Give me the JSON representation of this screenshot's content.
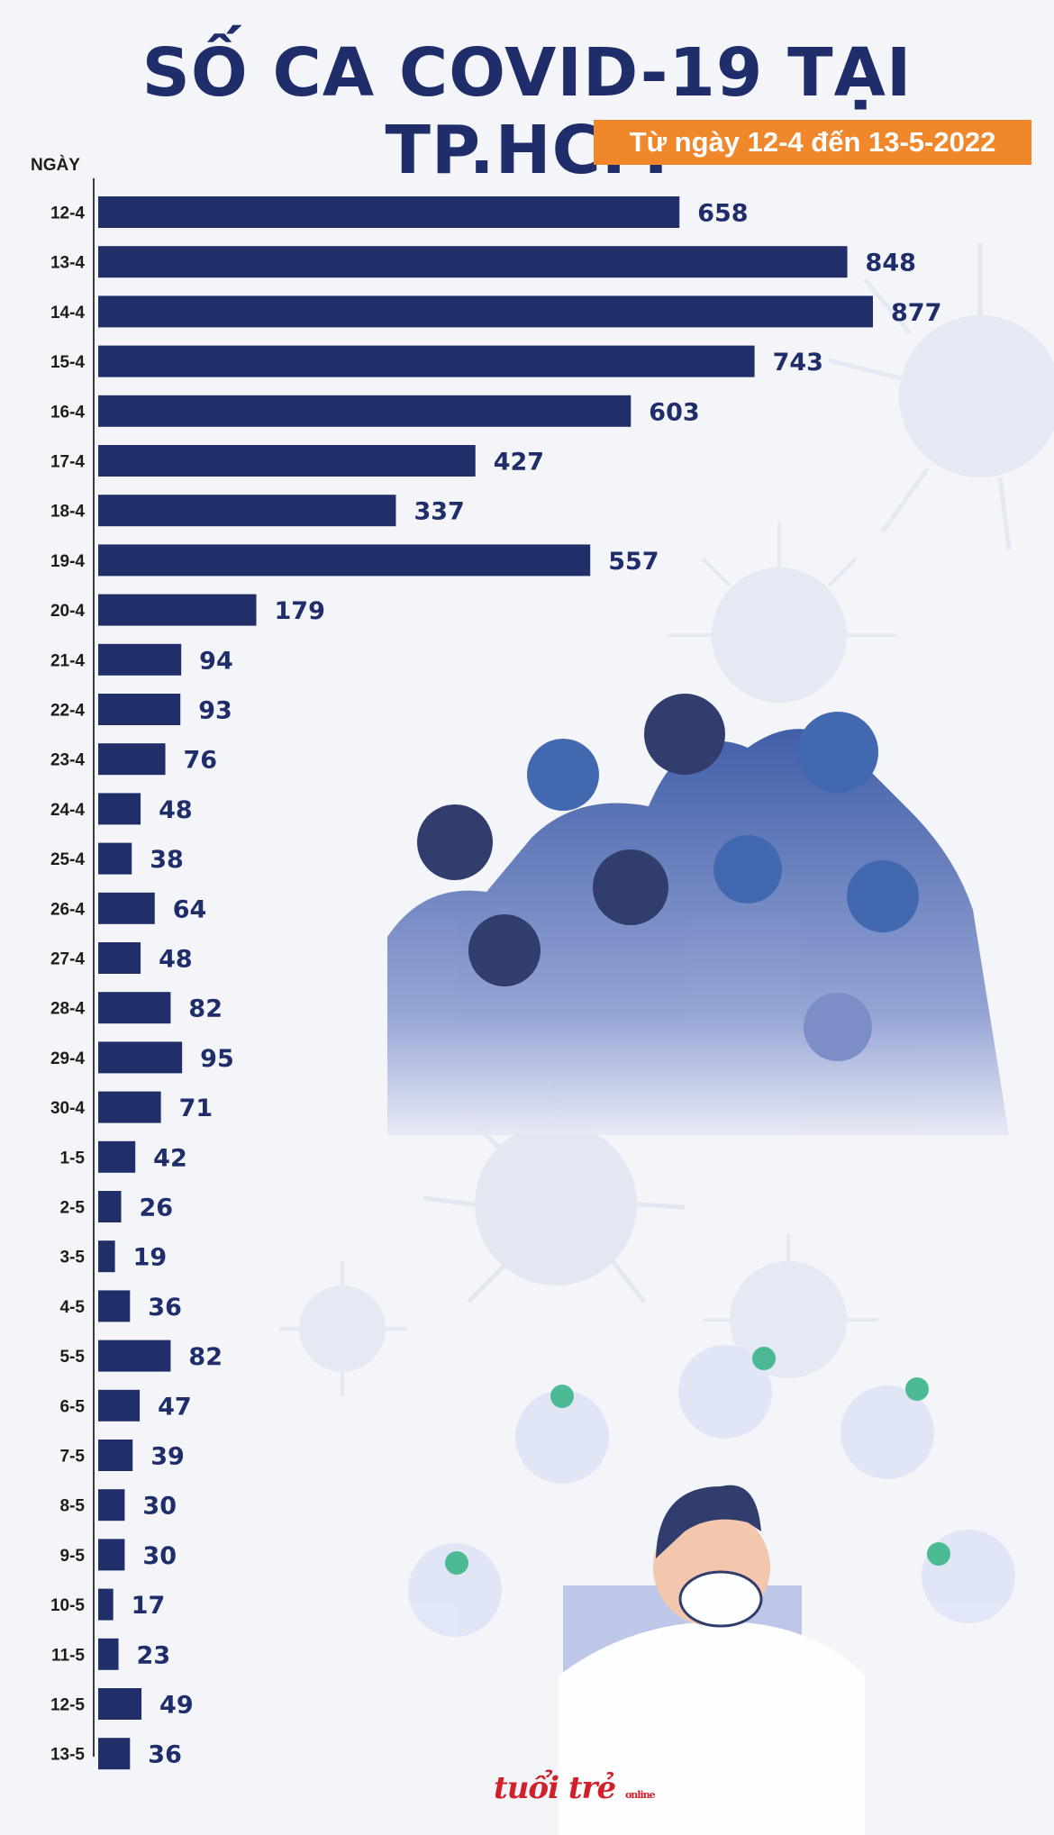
{
  "title": "SỐ CA COVID-19 TẠI TP.HCM",
  "subtitle": "Từ ngày 12-4 đến 13-5-2022",
  "logo": "tuổi trẻ",
  "logo_sub": "online",
  "colors": {
    "bar": "#202e69",
    "title": "#1f2d6b",
    "accent": "#f0872b",
    "label": "#1f2d6b"
  },
  "chart_data": {
    "type": "bar",
    "orientation": "horizontal",
    "ylabel": "NGÀY",
    "categories": [
      "12-4",
      "13-4",
      "14-4",
      "15-4",
      "16-4",
      "17-4",
      "18-4",
      "19-4",
      "20-4",
      "21-4",
      "22-4",
      "23-4",
      "24-4",
      "25-4",
      "26-4",
      "27-4",
      "28-4",
      "29-4",
      "30-4",
      "1-5",
      "2-5",
      "3-5",
      "4-5",
      "5-5",
      "6-5",
      "7-5",
      "8-5",
      "9-5",
      "10-5",
      "11-5",
      "12-5",
      "13-5"
    ],
    "values": [
      658,
      848,
      877,
      743,
      603,
      427,
      337,
      557,
      179,
      94,
      93,
      76,
      48,
      38,
      64,
      48,
      82,
      95,
      71,
      42,
      26,
      19,
      36,
      82,
      47,
      39,
      30,
      30,
      17,
      23,
      49,
      36
    ],
    "xlim": [
      0,
      877
    ],
    "grid": false,
    "legend": "none"
  }
}
